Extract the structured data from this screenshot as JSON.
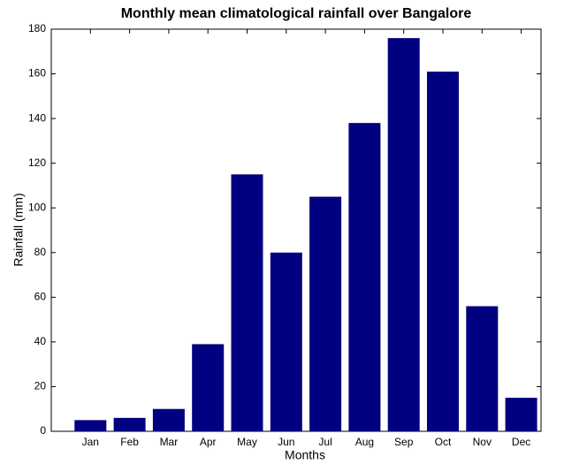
{
  "chart_data": {
    "type": "bar",
    "title": "Monthly mean climatological rainfall over Bangalore",
    "x_label": "Months",
    "y_label": "Rainfall (mm)",
    "categories": [
      "Jan",
      "Feb",
      "Mar",
      "Apr",
      "May",
      "Jun",
      "Jul",
      "Aug",
      "Sep",
      "Oct",
      "Nov",
      "Dec"
    ],
    "values": [
      5,
      6,
      10,
      39,
      115,
      80,
      105,
      138,
      176,
      161,
      56,
      15
    ],
    "color": "#000080",
    "ylim": [
      0,
      180
    ],
    "yticks": [
      0,
      20,
      40,
      60,
      80,
      100,
      120,
      140,
      160,
      180
    ],
    "grid": false
  }
}
